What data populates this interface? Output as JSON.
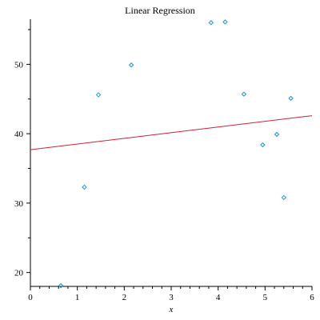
{
  "chart_data": {
    "type": "scatter",
    "title": "Linear Regression",
    "xlabel": "x",
    "ylabel": "",
    "xlim": [
      0,
      6
    ],
    "ylim": [
      18,
      56.5
    ],
    "x_ticks": [
      0,
      1,
      2,
      3,
      4,
      5,
      6
    ],
    "y_ticks": [
      20,
      30,
      40,
      50
    ],
    "grid": false,
    "points": [
      {
        "x": 0.65,
        "y": 18.1
      },
      {
        "x": 1.15,
        "y": 32.3
      },
      {
        "x": 1.45,
        "y": 45.6
      },
      {
        "x": 2.15,
        "y": 49.9
      },
      {
        "x": 3.85,
        "y": 56.0
      },
      {
        "x": 4.15,
        "y": 56.1
      },
      {
        "x": 4.55,
        "y": 45.7
      },
      {
        "x": 4.95,
        "y": 38.4
      },
      {
        "x": 5.25,
        "y": 39.9
      },
      {
        "x": 5.4,
        "y": 30.8
      },
      {
        "x": 5.55,
        "y": 45.1
      }
    ],
    "regression_line": {
      "x": [
        0,
        6
      ],
      "y": [
        37.7,
        42.6
      ]
    },
    "colors": {
      "points": "#1E90D8",
      "line": "#D02030",
      "axes": "#000000"
    }
  }
}
